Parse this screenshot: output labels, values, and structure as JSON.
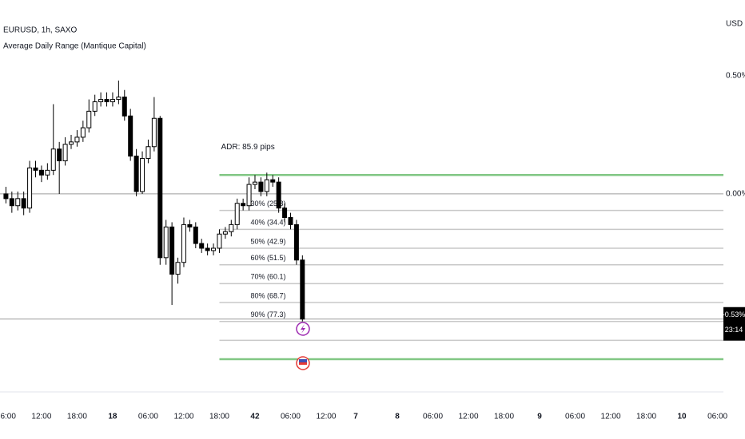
{
  "chart_data": {
    "type": "candlestick",
    "title": "EURUSD, 1h, SAXO",
    "subtitle": "Average Daily Range (Mantique Capital)",
    "y_unit": "USD",
    "x": [
      0,
      1,
      2,
      3,
      4,
      5,
      6,
      7,
      8,
      9,
      10,
      11,
      12,
      13,
      14,
      15,
      16,
      17,
      18,
      19,
      20,
      21,
      22,
      23,
      24,
      25,
      26,
      27,
      28,
      29,
      30,
      31,
      32,
      33,
      34,
      35,
      36,
      37,
      38,
      39,
      40,
      41,
      42,
      43,
      44,
      45,
      46,
      47,
      48,
      49,
      50
    ],
    "open": [
      0.0,
      -0.02,
      -0.05,
      -0.02,
      -0.06,
      0.11,
      0.1,
      0.08,
      0.1,
      0.19,
      0.14,
      0.21,
      0.22,
      0.24,
      0.28,
      0.35,
      0.39,
      0.4,
      0.39,
      0.4,
      0.41,
      0.33,
      0.16,
      0.01,
      0.15,
      0.2,
      0.32,
      -0.27,
      -0.14,
      -0.34,
      -0.29,
      -0.13,
      -0.14,
      -0.21,
      -0.23,
      -0.24,
      -0.23,
      -0.17,
      -0.16,
      -0.13,
      -0.04,
      -0.05,
      0.04,
      0.05,
      0.01,
      0.06,
      0.05,
      -0.06,
      -0.1,
      -0.13,
      -0.28
    ],
    "high": [
      0.03,
      0.01,
      0.01,
      0.01,
      0.14,
      0.14,
      0.12,
      0.13,
      0.38,
      0.22,
      0.24,
      0.25,
      0.27,
      0.31,
      0.4,
      0.42,
      0.43,
      0.43,
      0.43,
      0.48,
      0.44,
      0.36,
      0.19,
      0.18,
      0.23,
      0.41,
      0.33,
      -0.11,
      -0.12,
      -0.27,
      -0.1,
      -0.11,
      -0.12,
      -0.19,
      -0.21,
      -0.21,
      -0.15,
      -0.14,
      -0.11,
      -0.02,
      -0.02,
      0.07,
      0.08,
      0.07,
      0.09,
      0.08,
      0.07,
      -0.04,
      -0.08,
      -0.11,
      -0.26
    ],
    "low": [
      -0.04,
      -0.08,
      -0.07,
      -0.09,
      -0.08,
      0.07,
      0.05,
      0.06,
      0.08,
      0.0,
      0.12,
      0.19,
      0.2,
      0.22,
      0.26,
      0.33,
      0.37,
      0.37,
      0.37,
      0.38,
      0.31,
      0.14,
      -0.01,
      0.0,
      0.13,
      0.18,
      -0.3,
      -0.3,
      -0.47,
      -0.38,
      -0.31,
      -0.16,
      -0.23,
      -0.25,
      -0.26,
      -0.26,
      -0.25,
      -0.19,
      -0.18,
      -0.15,
      -0.07,
      -0.07,
      0.02,
      -0.01,
      -0.01,
      0.03,
      -0.08,
      -0.12,
      -0.15,
      -0.3,
      -0.54
    ],
    "close": [
      -0.02,
      -0.05,
      -0.02,
      -0.06,
      0.11,
      0.1,
      0.08,
      0.1,
      0.19,
      0.14,
      0.21,
      0.22,
      0.24,
      0.28,
      0.35,
      0.39,
      0.4,
      0.39,
      0.4,
      0.41,
      0.33,
      0.16,
      0.01,
      0.15,
      0.2,
      0.32,
      -0.27,
      -0.14,
      -0.34,
      -0.29,
      -0.13,
      -0.14,
      -0.21,
      -0.23,
      -0.24,
      -0.23,
      -0.17,
      -0.16,
      -0.13,
      -0.04,
      -0.05,
      0.04,
      0.05,
      0.01,
      0.06,
      0.05,
      -0.06,
      -0.1,
      -0.13,
      -0.28,
      -0.53
    ],
    "up_color": "#ffffff",
    "down_color": "#000000",
    "xlim": [
      -1,
      121
    ],
    "xticks": [
      {
        "value": 0,
        "label": "06:00"
      },
      {
        "value": 6,
        "label": "12:00"
      },
      {
        "value": 12,
        "label": "18:00"
      },
      18,
      {
        "value": 24,
        "label": "06:00"
      },
      {
        "value": 30,
        "label": "12:00"
      },
      {
        "value": 36,
        "label": "18:00"
      },
      42,
      {
        "value": 48,
        "label": "06:00"
      },
      {
        "value": 54,
        "label": "12:00"
      },
      {
        "value": 59,
        "label": "7"
      },
      {
        "value": 66,
        "label": "8"
      },
      {
        "value": 72,
        "label": "06:00"
      },
      {
        "value": 78,
        "label": "12:00"
      },
      {
        "value": 84,
        "label": "18:00"
      },
      {
        "value": 90,
        "label": "9"
      },
      {
        "value": 96,
        "label": "06:00"
      },
      {
        "value": 102,
        "label": "12:00"
      },
      {
        "value": 108,
        "label": "18:00"
      },
      {
        "value": 114,
        "label": "10"
      },
      {
        "value": 120,
        "label": "06:00"
      }
    ],
    "ylim": [
      -0.835,
      0.821
    ],
    "yticks": [
      {
        "value": 0.5,
        "label": "0.50%"
      },
      {
        "value": 0,
        "label": "0.00%"
      }
    ],
    "previous_close": 0,
    "last": {
      "value": -0.53,
      "label": "-0.53%"
    },
    "countdown": "23:14",
    "adr": {
      "label": "ADR: 85.9 pips",
      "color": "#81c784",
      "high": 0.08,
      "low": -0.7,
      "start_x": 36,
      "levels": [
        -0.07,
        -0.15,
        -0.23,
        -0.3,
        -0.38,
        -0.46,
        -0.54,
        -0.62
      ],
      "level_labels": [
        "30% (25.8)",
        "40% (34.4)",
        "50% (42.9)",
        "60% (51.5)",
        "70% (60.1)",
        "80% (68.7)",
        "90% (77.3)",
        null
      ]
    }
  }
}
